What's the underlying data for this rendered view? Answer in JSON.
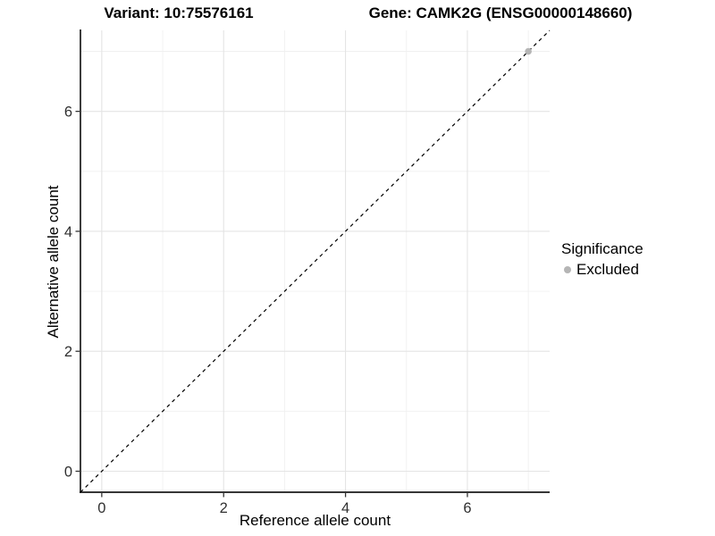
{
  "titles": {
    "left": "Variant: 10:75576161",
    "right": "Gene: CAMK2G (ENSG00000148660)"
  },
  "chart_data": {
    "type": "scatter",
    "title": "Variant: 10:75576161 — Gene: CAMK2G (ENSG00000148660)",
    "xlabel": "Reference allele count",
    "ylabel": "Alternative allele count",
    "xlim": [
      -0.35,
      7.35
    ],
    "ylim": [
      -0.35,
      7.35
    ],
    "x_major_ticks": [
      0,
      2,
      4,
      6
    ],
    "y_major_ticks": [
      0,
      2,
      4,
      6
    ],
    "x_minor_ticks": [
      1,
      3,
      5,
      7
    ],
    "y_minor_ticks": [
      1,
      3,
      5,
      7
    ],
    "grid": "major+minor",
    "points": [
      {
        "x": 7,
        "y": 7,
        "series": "Excluded"
      }
    ],
    "reference_line": {
      "slope": 1,
      "intercept": 0,
      "style": "dashed"
    },
    "legend": {
      "position": "right",
      "title": "Significance",
      "items": [
        {
          "label": "Excluded",
          "color": "#b5b5b5",
          "marker": "circle"
        }
      ]
    },
    "colors": {
      "background": "#ffffff",
      "grid_major": "#e4e4e4",
      "grid_minor": "#f0f0f0",
      "axis_line": "#1a1a1a",
      "tick_mark": "#333333",
      "tick_label": "#303030",
      "reference_line": "#000000",
      "point": "#b5b5b5"
    }
  }
}
